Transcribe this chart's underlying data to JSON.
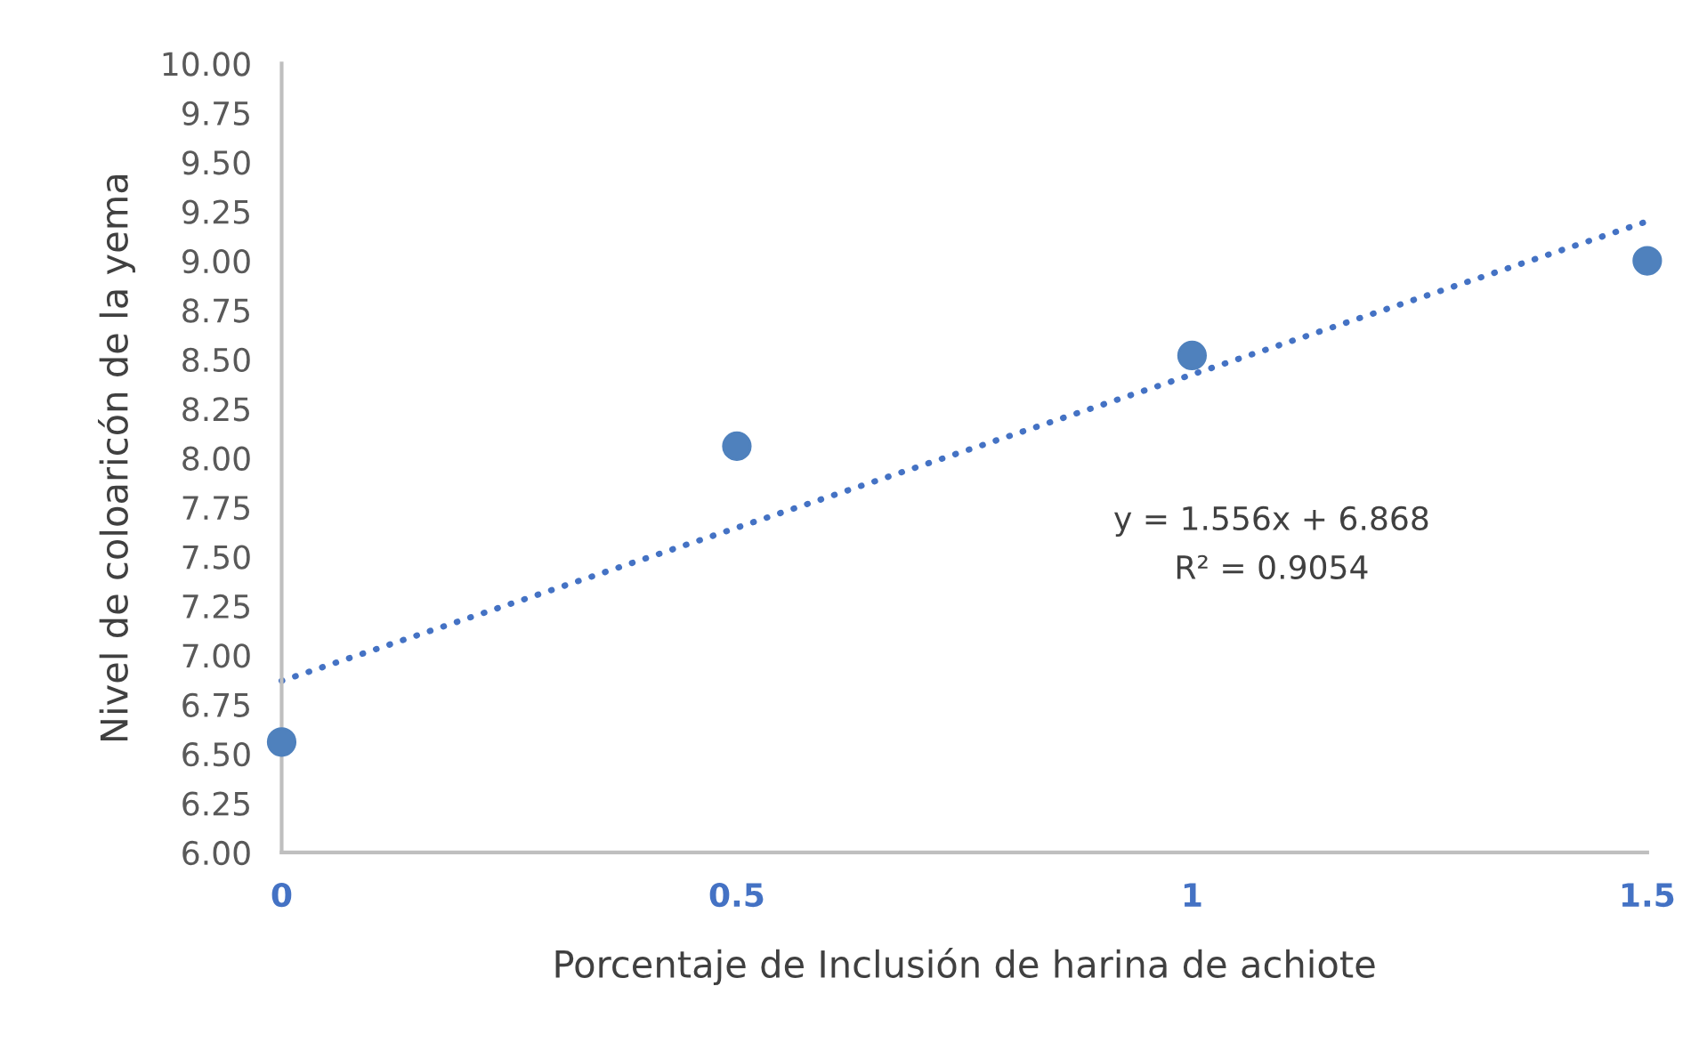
{
  "chart_data": {
    "type": "scatter",
    "xlabel": "Porcentaje de Inclusión de harina de achiote",
    "ylabel": "Nivel de coloaricón de la yema",
    "series": [
      {
        "color": "#4f81bd",
        "x": [
          0,
          0.5,
          1,
          1.5
        ],
        "values": [
          6.56,
          8.06,
          8.52,
          9.0
        ],
        "marker": "circle"
      },
      {
        "type": "line",
        "color": "#4472c4",
        "x": [
          0,
          1.5
        ],
        "values": [
          6.87,
          9.2
        ],
        "line_style": "dotted"
      }
    ],
    "annotations": [
      "y = 1.556x + 6.868",
      "R² = 0.9054"
    ],
    "xlim": [
      0,
      1.5
    ],
    "xticks": [
      0,
      0.5,
      1,
      1.5
    ],
    "ylim": [
      6,
      10
    ],
    "yticks": [
      {
        "value": 6,
        "label": "6.00"
      },
      {
        "value": 6.25,
        "label": "6.25"
      },
      {
        "value": 6.5,
        "label": "6.50"
      },
      {
        "value": 6.75,
        "label": "6.75"
      },
      {
        "value": 7,
        "label": "7.00"
      },
      {
        "value": 7.25,
        "label": "7.25"
      },
      {
        "value": 7.5,
        "label": "7.50"
      },
      {
        "value": 7.75,
        "label": "7.75"
      },
      {
        "value": 8,
        "label": "8.00"
      },
      {
        "value": 8.25,
        "label": "8.25"
      },
      {
        "value": 8.5,
        "label": "8.50"
      },
      {
        "value": 8.75,
        "label": "8.75"
      },
      {
        "value": 9,
        "label": "9.00"
      },
      {
        "value": 9.25,
        "label": "9.25"
      },
      {
        "value": 9.5,
        "label": "9.50"
      },
      {
        "value": 9.75,
        "label": "9.75"
      },
      {
        "value": 10,
        "label": "10.00"
      }
    ],
    "grid": false,
    "legend": false
  }
}
